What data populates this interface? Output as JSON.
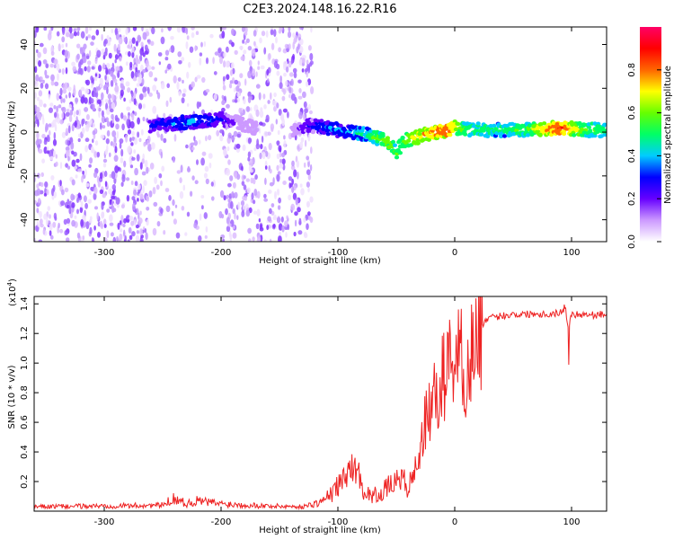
{
  "title": "C2E3.2024.148.16.22.R16",
  "chart_data": [
    {
      "type": "heatmap",
      "xlabel": "Height of straight line (km)",
      "ylabel": "Frequency (Hz)",
      "xlim": [
        -360,
        130
      ],
      "ylim": [
        -50,
        48
      ],
      "xticks": [
        -300,
        -200,
        -100,
        0,
        100
      ],
      "yticks": [
        -40,
        -20,
        0,
        20,
        40
      ],
      "colorbar": {
        "label": "Normalized spectral amplitude",
        "range": [
          0,
          1
        ],
        "ticks": [
          0.0,
          0.2,
          0.4,
          0.6,
          0.8
        ],
        "colors": [
          "#ffffff",
          "#cc99ff",
          "#6600ff",
          "#0000ff",
          "#00ccff",
          "#00ff66",
          "#66ff00",
          "#ffff00",
          "#ff6600",
          "#ff0000",
          "#ff0066"
        ]
      },
      "noise_regions": [
        {
          "x": [
            -360,
            -260
          ],
          "y": [
            -50,
            48
          ],
          "level": 0.18
        },
        {
          "x": [
            -260,
            -200
          ],
          "y": [
            -50,
            48
          ],
          "level": 0.06
        },
        {
          "x": [
            -200,
            -122
          ],
          "y": [
            -50,
            48
          ],
          "level": 0.14
        }
      ],
      "trace": {
        "x": [
          -260,
          -240,
          -220,
          -200,
          -170,
          -140,
          -125,
          -110,
          -90,
          -75,
          -65,
          -55,
          -50,
          -45,
          -35,
          -25,
          -15,
          -5,
          0,
          10,
          30,
          60,
          90,
          110,
          130
        ],
        "y": [
          3,
          4,
          5,
          6,
          2,
          0,
          3,
          2,
          0,
          -1,
          -3,
          -5,
          -10,
          -4,
          -3,
          -1,
          0,
          1,
          2,
          1,
          1,
          1,
          2,
          1,
          1
        ],
        "amplitude": [
          0.3,
          0.35,
          0.38,
          0.3,
          0,
          0,
          0.3,
          0.35,
          0.4,
          0.5,
          0.6,
          0.65,
          0.55,
          0.6,
          0.7,
          0.75,
          0.8,
          0.85,
          0.7,
          0.55,
          0.5,
          0.55,
          0.9,
          0.6,
          0.5
        ]
      }
    },
    {
      "type": "line",
      "xlabel": "Height of straight line (km)",
      "ylabel": "SNR (10 * v/v)",
      "multiplier_label": "(x10",
      "multiplier_exp": "4",
      "xlim": [
        -360,
        130
      ],
      "ylim": [
        0,
        14500
      ],
      "xticks": [
        -300,
        -200,
        -100,
        0,
        100
      ],
      "yticks": [
        2000,
        4000,
        6000,
        8000,
        10000,
        12000,
        14000
      ],
      "ytick_labels": [
        "0.2",
        "0.4",
        "0.6",
        "0.8",
        "1.0",
        "1.2",
        "1.4"
      ],
      "series": [
        {
          "color": "#ee2222",
          "x": [
            -360,
            -300,
            -250,
            -240,
            -230,
            -220,
            -200,
            -160,
            -130,
            -115,
            -105,
            -95,
            -88,
            -82,
            -78,
            -72,
            -65,
            -58,
            -52,
            -45,
            -40,
            -35,
            -30,
            -25,
            -20,
            -15,
            -10,
            -5,
            0,
            5,
            10,
            15,
            20,
            25,
            30,
            40,
            50,
            60,
            70,
            80,
            90,
            95,
            97,
            100,
            110,
            120,
            130
          ],
          "y": [
            300,
            350,
            400,
            900,
            500,
            700,
            500,
            350,
            300,
            600,
            1200,
            2200,
            3000,
            2500,
            1500,
            1000,
            1200,
            1500,
            2000,
            2200,
            1500,
            2500,
            4000,
            6000,
            7000,
            8000,
            9000,
            10000,
            11000,
            10500,
            9000,
            11000,
            12000,
            12800,
            13000,
            13200,
            13300,
            13300,
            13350,
            13300,
            13400,
            13800,
            12200,
            13300,
            13300,
            13250,
            13300
          ]
        }
      ]
    }
  ]
}
